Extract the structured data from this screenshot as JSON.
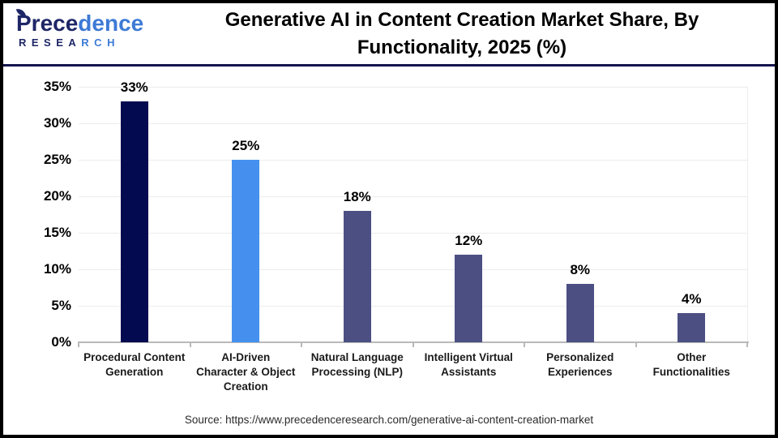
{
  "header": {
    "logo": {
      "brand_primary": "Prece",
      "brand_secondary": "dence",
      "sub_primary": "RESEA",
      "sub_secondary": "RCH"
    },
    "title_line1": "Generative AI in Content Creation Market Share, By",
    "title_line2": "Functionality, 2025 (%)"
  },
  "chart_data": {
    "type": "bar",
    "title": "Generative AI in Content Creation Market Share, By Functionality, 2025 (%)",
    "categories": [
      "Procedural Content Generation",
      "AI-Driven Character & Object Creation",
      "Natural Language Processing (NLP)",
      "Intelligent Virtual Assistants",
      "Personalized Experiences",
      "Other Functionalities"
    ],
    "category_lines": [
      [
        "Procedural Content",
        "Generation"
      ],
      [
        "AI-Driven",
        "Character & Object",
        "Creation"
      ],
      [
        "Natural Language",
        "Processing (NLP)"
      ],
      [
        "Intelligent Virtual",
        "Assistants"
      ],
      [
        "Personalized",
        "Experiences"
      ],
      [
        "Other",
        "Functionalities"
      ]
    ],
    "values": [
      33,
      25,
      18,
      12,
      8,
      4
    ],
    "value_labels": [
      "33%",
      "25%",
      "18%",
      "12%",
      "8%",
      "4%"
    ],
    "bar_colors": [
      "#040a50",
      "#4590ee",
      "#4b4f82",
      "#4b4f82",
      "#4b4f82",
      "#4b4f82"
    ],
    "yticks": [
      "0%",
      "5%",
      "10%",
      "15%",
      "20%",
      "25%",
      "30%",
      "35%"
    ],
    "ylim": [
      0,
      35
    ],
    "ytick_step": 5,
    "xlabel": "",
    "ylabel": "",
    "grid": true,
    "legend": false
  },
  "footer": {
    "source": "Source: https://www.precedenceresearch.com/generative-ai-content-creation-market"
  },
  "colors": {
    "bar_dark_navy": "#040a50",
    "bar_bright_blue": "#4590ee",
    "bar_slate_blue": "#4b4f82",
    "divider_navy": "#14144e",
    "logo_dark": "#1e2667",
    "logo_blue": "#3d7ad6",
    "gridline": "#ececec",
    "axis_line": "#b9b9b9"
  }
}
